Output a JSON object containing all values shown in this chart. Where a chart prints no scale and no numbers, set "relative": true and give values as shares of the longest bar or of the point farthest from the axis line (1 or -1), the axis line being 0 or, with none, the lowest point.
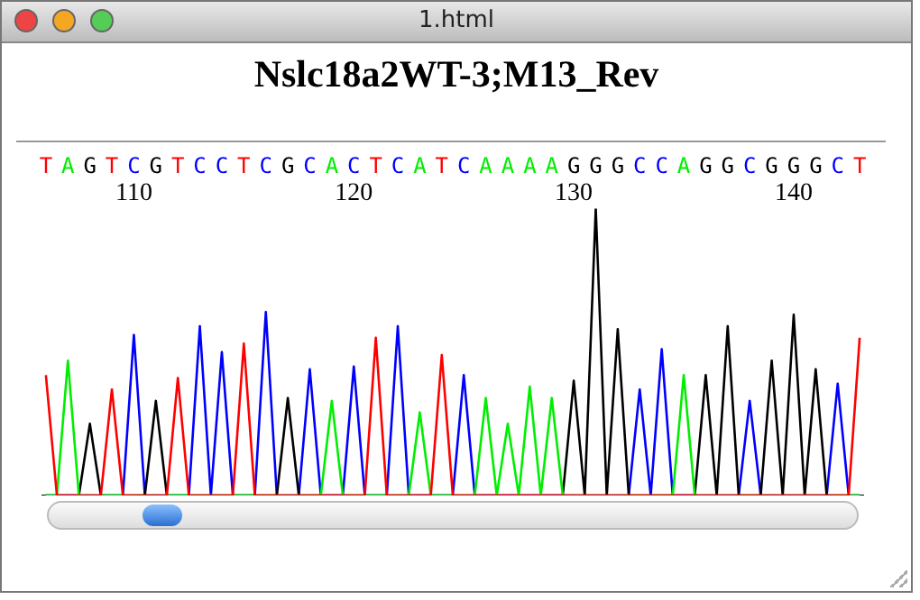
{
  "chart_data": {
    "type": "line",
    "title": "Nslc18a2WT-3;M13_Rev",
    "relative": true,
    "grid": false,
    "legend": false,
    "marker": "none",
    "line_style": "solid",
    "xlim": [
      105.8,
      143.2
    ],
    "xticks": [
      110,
      120,
      130,
      140
    ],
    "annotations": [
      "1.html",
      "T",
      "A",
      "G",
      "T",
      "C",
      "G",
      "T",
      "C",
      "C",
      "T",
      "C",
      "G",
      "C",
      "A",
      "C",
      "T",
      "C",
      "A",
      "T",
      "C",
      "A",
      "A",
      "A",
      "A",
      "G",
      "G",
      "G",
      "C",
      "C",
      "A",
      "G",
      "G",
      "C",
      "G",
      "G",
      "G",
      "C",
      "T"
    ],
    "series": [
      {
        "color": "#ff0000",
        "x": [
          106,
          106.5,
          108.5,
          109,
          109.5,
          111.5,
          112,
          112.5,
          114.5,
          115,
          115.5,
          120.5,
          121,
          121.5,
          123.5,
          124,
          124.5,
          142.5,
          143
        ],
        "values": [
          0.42,
          0,
          0,
          0.37,
          0,
          0,
          0.41,
          0,
          0,
          0.53,
          0,
          0,
          0.55,
          0,
          0,
          0.49,
          0,
          0,
          0.55
        ]
      },
      {
        "color": "#00ee00",
        "x": [
          106,
          106.5,
          107,
          107.5,
          118.5,
          119,
          119.5,
          122.5,
          123,
          123.5,
          125.5,
          126,
          126.5,
          127,
          127.5,
          128,
          128.5,
          129,
          129.5,
          134.5,
          135,
          135.5,
          143
        ],
        "values": [
          0,
          0,
          0.47,
          0,
          0,
          0.33,
          0,
          0,
          0.29,
          0,
          0,
          0.34,
          0,
          0.25,
          0,
          0.38,
          0,
          0.34,
          0,
          0,
          0.42,
          0,
          0
        ]
      },
      {
        "color": "#000000",
        "x": [
          106,
          107.5,
          108,
          108.5,
          110.5,
          111,
          111.5,
          116.5,
          117,
          117.5,
          129.5,
          130,
          130.5,
          131,
          131.5,
          132,
          132.5,
          135.5,
          136,
          136.5,
          137,
          137.5,
          138.5,
          139,
          139.5,
          140,
          140.5,
          141,
          141.5,
          143
        ],
        "values": [
          0,
          0,
          0.25,
          0,
          0,
          0.33,
          0,
          0,
          0.34,
          0,
          0,
          0.4,
          0,
          1,
          0,
          0.58,
          0,
          0,
          0.42,
          0,
          0.59,
          0,
          0,
          0.47,
          0,
          0.63,
          0,
          0.44,
          0,
          0
        ]
      },
      {
        "color": "#0000ff",
        "x": [
          106,
          109.5,
          110,
          110.5,
          112.5,
          113,
          113.5,
          114,
          114.5,
          115.5,
          116,
          116.5,
          117.5,
          118,
          118.5,
          119.5,
          120,
          120.5,
          121.5,
          122,
          122.5,
          124.5,
          125,
          125.5,
          132.5,
          133,
          133.5,
          134,
          134.5,
          137.5,
          138,
          138.5,
          141.5,
          142,
          142.5,
          143
        ],
        "values": [
          0,
          0,
          0.56,
          0,
          0,
          0.59,
          0,
          0.5,
          0,
          0,
          0.64,
          0,
          0,
          0.44,
          0,
          0,
          0.45,
          0,
          0,
          0.59,
          0,
          0,
          0.42,
          0,
          0,
          0.37,
          0,
          0.51,
          0,
          0,
          0.33,
          0,
          0,
          0.39,
          0,
          0
        ]
      }
    ]
  }
}
